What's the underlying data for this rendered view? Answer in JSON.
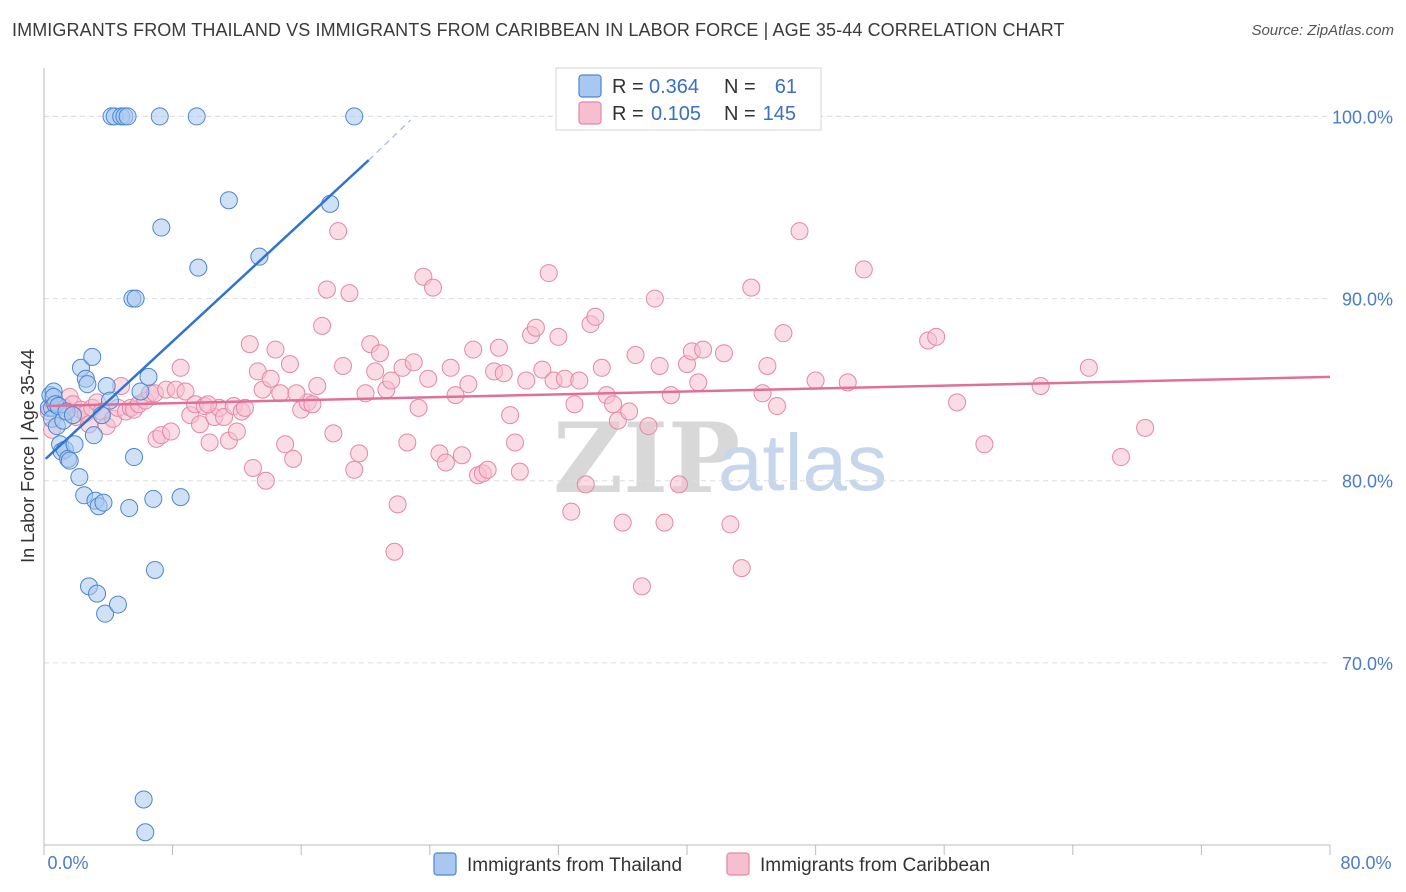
{
  "title": "IMMIGRANTS FROM THAILAND VS IMMIGRANTS FROM CARIBBEAN IN LABOR FORCE | AGE 35-44 CORRELATION CHART",
  "source": "Source: ZipAtlas.com",
  "watermark": {
    "zip": "ZIP",
    "atlas": "atlas"
  },
  "colors": {
    "thailand_fill": "#a9c8ef",
    "thailand_stroke": "#4a86d4",
    "thailand_line": "#2e74d0",
    "caribbean_fill": "#f6bfd0",
    "caribbean_stroke": "#e487a8",
    "caribbean_line": "#e0709a",
    "tick_label": "#4a7cc7",
    "grid": "#dddddd"
  },
  "legend": {
    "rows": [
      {
        "r_label": "R =",
        "r_value": "0.364",
        "n_label": "N =",
        "n_value": "61"
      },
      {
        "r_label": "R =",
        "r_value": "0.105",
        "n_label": "N =",
        "n_value": "145"
      }
    ]
  },
  "chart_data": {
    "type": "scatter",
    "title": "IMMIGRANTS FROM THAILAND VS IMMIGRANTS FROM CARIBBEAN IN LABOR FORCE | AGE 35-44 CORRELATION CHART",
    "xlabel": "",
    "ylabel": "In Labor Force | Age 35-44",
    "xlim": [
      0,
      80
    ],
    "ylim": [
      60,
      102
    ],
    "x_tick_labels": [
      "0.0%",
      "80.0%"
    ],
    "y_ticks": [
      70,
      80,
      90,
      100
    ],
    "y_tick_labels": [
      "70.0%",
      "80.0%",
      "90.0%",
      "100.0%"
    ],
    "series": [
      {
        "name": "Immigrants from Thailand",
        "R": 0.364,
        "N": 61,
        "trend": {
          "x0": 0.1,
          "y0": 81.2,
          "x1": 20.2,
          "y1": 97.6,
          "dash_to_x": 22.8,
          "dash_to_y": 99.8
        },
        "points": [
          [
            0.3,
            84.0
          ],
          [
            0.4,
            84.7
          ],
          [
            0.5,
            84.0
          ],
          [
            0.5,
            83.4
          ],
          [
            0.6,
            84.9
          ],
          [
            0.6,
            84.6
          ],
          [
            0.7,
            84.2
          ],
          [
            0.8,
            83.0
          ],
          [
            0.9,
            84.1
          ],
          [
            1.0,
            82.0
          ],
          [
            1.1,
            81.6
          ],
          [
            1.2,
            83.3
          ],
          [
            1.3,
            81.7
          ],
          [
            1.4,
            83.8
          ],
          [
            1.5,
            81.2
          ],
          [
            1.6,
            81.1
          ],
          [
            1.8,
            83.6
          ],
          [
            1.9,
            82.0
          ],
          [
            2.2,
            80.2
          ],
          [
            2.3,
            86.2
          ],
          [
            2.5,
            79.2
          ],
          [
            2.6,
            85.6
          ],
          [
            2.7,
            85.3
          ],
          [
            2.8,
            74.2
          ],
          [
            3.0,
            86.8
          ],
          [
            3.1,
            82.5
          ],
          [
            3.2,
            78.9
          ],
          [
            3.3,
            73.8
          ],
          [
            3.4,
            78.6
          ],
          [
            3.6,
            83.6
          ],
          [
            3.7,
            78.8
          ],
          [
            3.8,
            72.7
          ],
          [
            3.9,
            85.2
          ],
          [
            4.1,
            84.4
          ],
          [
            4.2,
            100.0
          ],
          [
            4.4,
            100.0
          ],
          [
            4.6,
            73.2
          ],
          [
            4.8,
            100.0
          ],
          [
            5.0,
            100.0
          ],
          [
            5.2,
            100.0
          ],
          [
            5.3,
            78.5
          ],
          [
            5.5,
            90.0
          ],
          [
            5.6,
            81.3
          ],
          [
            5.7,
            90.0
          ],
          [
            6.0,
            84.9
          ],
          [
            6.2,
            62.5
          ],
          [
            6.3,
            60.7
          ],
          [
            6.5,
            85.7
          ],
          [
            6.8,
            79.0
          ],
          [
            6.9,
            75.1
          ],
          [
            7.2,
            100.0
          ],
          [
            7.3,
            93.9
          ],
          [
            8.5,
            79.1
          ],
          [
            9.5,
            100.0
          ],
          [
            9.6,
            91.7
          ],
          [
            11.5,
            95.4
          ],
          [
            13.4,
            92.3
          ],
          [
            17.8,
            95.2
          ],
          [
            19.3,
            100.0
          ]
        ]
      },
      {
        "name": "Immigrants from Caribbean",
        "R": 0.105,
        "N": 145,
        "trend": {
          "x0": 0.1,
          "y0": 84.1,
          "x1": 80.0,
          "y1": 85.7
        },
        "points": [
          [
            0.3,
            83.8
          ],
          [
            0.5,
            82.8
          ],
          [
            0.8,
            84.2
          ],
          [
            1.3,
            84.0
          ],
          [
            1.6,
            84.6
          ],
          [
            1.8,
            84.2
          ],
          [
            2.0,
            83.5
          ],
          [
            2.3,
            83.9
          ],
          [
            2.6,
            83.7
          ],
          [
            2.8,
            83.1
          ],
          [
            3.0,
            84.0
          ],
          [
            3.3,
            84.3
          ],
          [
            3.6,
            83.8
          ],
          [
            3.9,
            83.0
          ],
          [
            4.3,
            83.4
          ],
          [
            4.6,
            84.0
          ],
          [
            4.8,
            85.2
          ],
          [
            5.1,
            83.8
          ],
          [
            5.4,
            84.0
          ],
          [
            5.6,
            83.9
          ],
          [
            5.9,
            84.2
          ],
          [
            6.3,
            84.4
          ],
          [
            6.6,
            84.8
          ],
          [
            6.9,
            84.8
          ],
          [
            7.0,
            82.3
          ],
          [
            7.3,
            82.5
          ],
          [
            7.6,
            85.0
          ],
          [
            7.9,
            82.7
          ],
          [
            8.2,
            85.0
          ],
          [
            8.5,
            86.2
          ],
          [
            8.8,
            84.9
          ],
          [
            9.1,
            83.6
          ],
          [
            9.4,
            84.2
          ],
          [
            9.7,
            83.1
          ],
          [
            10.0,
            84.1
          ],
          [
            10.3,
            82.1
          ],
          [
            10.6,
            83.5
          ],
          [
            10.9,
            84.0
          ],
          [
            11.2,
            83.5
          ],
          [
            11.5,
            82.2
          ],
          [
            11.8,
            84.1
          ],
          [
            12.0,
            82.7
          ],
          [
            12.3,
            83.8
          ],
          [
            12.5,
            84.0
          ],
          [
            12.8,
            87.5
          ],
          [
            13.0,
            80.7
          ],
          [
            13.3,
            86.0
          ],
          [
            13.6,
            85.0
          ],
          [
            13.8,
            80.0
          ],
          [
            14.1,
            85.6
          ],
          [
            14.4,
            87.2
          ],
          [
            14.7,
            84.8
          ],
          [
            15.0,
            82.0
          ],
          [
            15.3,
            86.4
          ],
          [
            15.5,
            81.2
          ],
          [
            16.0,
            83.9
          ],
          [
            16.4,
            84.3
          ],
          [
            16.7,
            84.2
          ],
          [
            17.0,
            85.2
          ],
          [
            17.3,
            88.5
          ],
          [
            17.6,
            90.5
          ],
          [
            18.0,
            82.6
          ],
          [
            18.3,
            93.7
          ],
          [
            18.6,
            86.3
          ],
          [
            19.0,
            90.3
          ],
          [
            19.3,
            80.6
          ],
          [
            19.6,
            81.5
          ],
          [
            20.0,
            84.8
          ],
          [
            20.3,
            87.5
          ],
          [
            20.6,
            86.0
          ],
          [
            20.9,
            87.0
          ],
          [
            21.3,
            85.0
          ],
          [
            21.6,
            85.5
          ],
          [
            22.0,
            78.7
          ],
          [
            22.3,
            86.2
          ],
          [
            22.6,
            82.1
          ],
          [
            23.0,
            86.5
          ],
          [
            23.3,
            84.0
          ],
          [
            23.6,
            91.2
          ],
          [
            23.9,
            85.6
          ],
          [
            24.2,
            90.6
          ],
          [
            24.6,
            81.5
          ],
          [
            25.0,
            81.0
          ],
          [
            25.3,
            86.2
          ],
          [
            25.6,
            84.7
          ],
          [
            26.0,
            81.4
          ],
          [
            26.4,
            85.3
          ],
          [
            26.7,
            87.2
          ],
          [
            27.0,
            80.3
          ],
          [
            27.3,
            80.4
          ],
          [
            27.6,
            80.6
          ],
          [
            28.0,
            86.0
          ],
          [
            28.3,
            87.3
          ],
          [
            28.6,
            85.9
          ],
          [
            29.0,
            83.6
          ],
          [
            29.3,
            82.1
          ],
          [
            29.6,
            80.5
          ],
          [
            30.0,
            85.5
          ],
          [
            30.3,
            88.0
          ],
          [
            30.6,
            88.4
          ],
          [
            31.0,
            86.1
          ],
          [
            31.4,
            91.4
          ],
          [
            31.7,
            85.5
          ],
          [
            32.0,
            87.9
          ],
          [
            32.4,
            85.6
          ],
          [
            32.8,
            78.3
          ],
          [
            33.0,
            84.2
          ],
          [
            33.3,
            85.5
          ],
          [
            33.7,
            79.8
          ],
          [
            34.0,
            88.6
          ],
          [
            34.3,
            89.0
          ],
          [
            34.7,
            86.2
          ],
          [
            35.0,
            84.7
          ],
          [
            35.4,
            84.2
          ],
          [
            35.7,
            83.3
          ],
          [
            36.0,
            77.7
          ],
          [
            36.4,
            83.8
          ],
          [
            36.8,
            86.9
          ],
          [
            37.2,
            74.2
          ],
          [
            37.6,
            83.0
          ],
          [
            38.0,
            90.0
          ],
          [
            38.3,
            86.3
          ],
          [
            38.6,
            77.7
          ],
          [
            39.0,
            84.7
          ],
          [
            39.5,
            79.8
          ],
          [
            40.0,
            86.4
          ],
          [
            40.3,
            87.1
          ],
          [
            40.7,
            85.4
          ],
          [
            41.0,
            87.2
          ],
          [
            42.3,
            87.0
          ],
          [
            42.7,
            77.6
          ],
          [
            43.4,
            75.2
          ],
          [
            44.0,
            90.6
          ],
          [
            44.7,
            84.8
          ],
          [
            45.0,
            86.3
          ],
          [
            45.6,
            84.1
          ],
          [
            46.0,
            88.1
          ],
          [
            47.0,
            93.7
          ],
          [
            48.0,
            85.5
          ],
          [
            50.0,
            85.4
          ],
          [
            51.0,
            91.6
          ],
          [
            55.0,
            87.7
          ],
          [
            55.5,
            87.9
          ],
          [
            56.8,
            84.3
          ],
          [
            58.5,
            82.0
          ],
          [
            62.0,
            85.2
          ],
          [
            65.0,
            86.2
          ],
          [
            67.0,
            81.3
          ],
          [
            68.5,
            82.9
          ],
          [
            15.7,
            84.8
          ],
          [
            21.8,
            76.1
          ],
          [
            10.2,
            84.2
          ]
        ]
      }
    ]
  },
  "bottom_legend": {
    "items": [
      {
        "label": "Immigrants from Thailand"
      },
      {
        "label": "Immigrants from Caribbean"
      }
    ]
  }
}
